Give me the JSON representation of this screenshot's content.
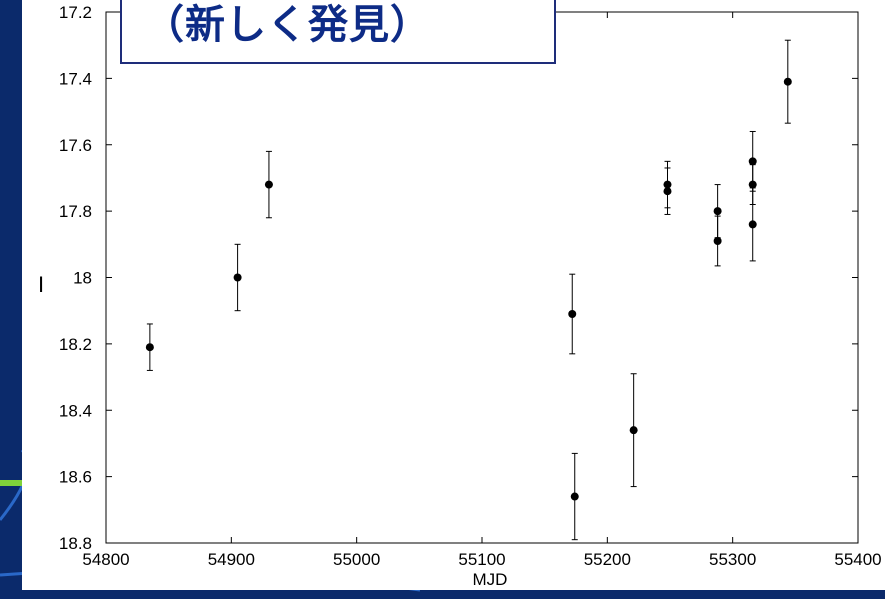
{
  "title_box": {
    "text": "（新しく発見）"
  },
  "colors": {
    "slide_background": "#0b2a6b",
    "accent_swoosh": "#2a68c8",
    "highlight": "#7fd23a",
    "title_text": "#0d2b86",
    "title_border": "#1e2d7a",
    "marker": "#000000"
  },
  "chart_data": {
    "type": "scatter",
    "xlabel": "MJD",
    "ylabel": "I",
    "xlim": [
      54800,
      55400
    ],
    "ylim": [
      17.2,
      18.8
    ],
    "y_inverted": true,
    "grid": false,
    "x_ticks": [
      54800,
      54900,
      55000,
      55100,
      55200,
      55300,
      55400
    ],
    "y_ticks": [
      17.2,
      17.4,
      17.6,
      17.8,
      18,
      18.2,
      18.4,
      18.6,
      18.8
    ],
    "y_tick_labels": [
      "17.2",
      "17.4",
      "17.6",
      "17.8",
      "18",
      "18.2",
      "18.4",
      "18.6",
      "18.8"
    ],
    "points": [
      {
        "x": 54835,
        "y": 18.21,
        "err": 0.07
      },
      {
        "x": 54905,
        "y": 18.0,
        "err": 0.1
      },
      {
        "x": 54930,
        "y": 17.72,
        "err": 0.1
      },
      {
        "x": 55172,
        "y": 18.11,
        "err": 0.12
      },
      {
        "x": 55174,
        "y": 18.66,
        "err": 0.13
      },
      {
        "x": 55221,
        "y": 18.46,
        "err": 0.17
      },
      {
        "x": 55248,
        "y": 17.72,
        "err": 0.07
      },
      {
        "x": 55248,
        "y": 17.74,
        "err": 0.07
      },
      {
        "x": 55288,
        "y": 17.8,
        "err": 0.08
      },
      {
        "x": 55288,
        "y": 17.89,
        "err": 0.075
      },
      {
        "x": 55316,
        "y": 17.65,
        "err": 0.09
      },
      {
        "x": 55316,
        "y": 17.72,
        "err": 0.06
      },
      {
        "x": 55316,
        "y": 17.84,
        "err": 0.11
      },
      {
        "x": 55344,
        "y": 17.41,
        "err": 0.125
      }
    ]
  }
}
